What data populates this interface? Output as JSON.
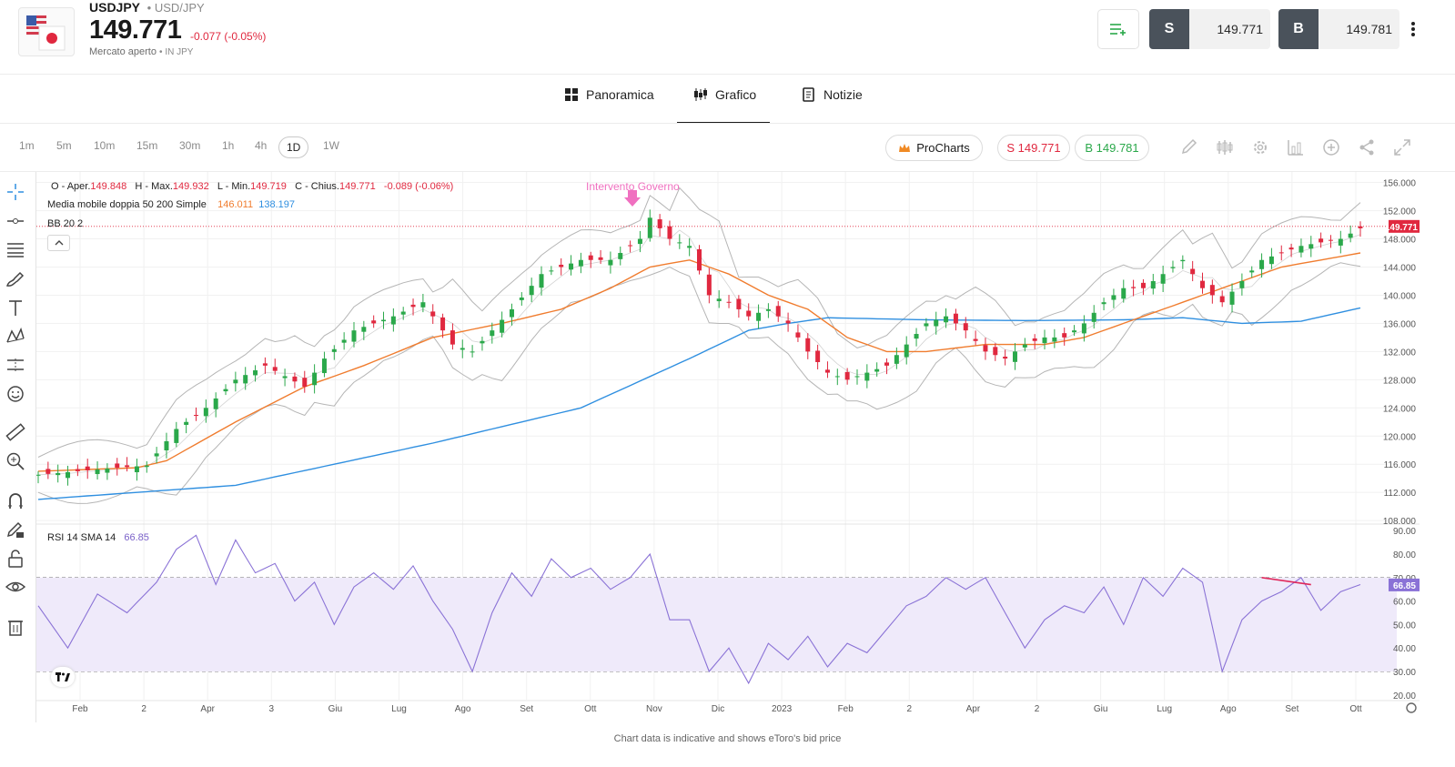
{
  "instrument": {
    "symbol": "USDJPY",
    "pair": "USD/JPY",
    "price": "149.771",
    "change": "-0.077 (-0.05%)",
    "market_status": "Mercato aperto",
    "currency": "IN JPY"
  },
  "trade": {
    "sell_label": "S",
    "sell_price": "149.771",
    "buy_label": "B",
    "buy_price": "149.781"
  },
  "tabs": [
    {
      "label": "Panoramica",
      "icon": "grid-icon"
    },
    {
      "label": "Grafico",
      "icon": "candlestick-icon",
      "active": true
    },
    {
      "label": "Notizie",
      "icon": "news-icon"
    }
  ],
  "timeframes": [
    "1m",
    "5m",
    "10m",
    "15m",
    "30m",
    "1h",
    "4h",
    "1D",
    "1W"
  ],
  "active_timeframe": "1D",
  "toolbar": {
    "procharts": "ProCharts",
    "sell_pill": "S 149.771",
    "buy_pill": "B 149.781"
  },
  "legend": {
    "ohlc": {
      "o_label": "O - Aper.",
      "o": "149.848",
      "h_label": "H - Max.",
      "h": "149.932",
      "l_label": "L - Min.",
      "l": "149.719",
      "c_label": "C - Chius.",
      "c": "149.771",
      "chg": "-0.089 (-0.06%)"
    },
    "ma_label": "Media mobile doppia 50 200 Simple",
    "ma50": "146.011",
    "ma200": "138.197",
    "bb_label": "BB 20 2",
    "rsi_label": "RSI 14 SMA 14",
    "rsi_value": "66.85"
  },
  "annotation": "Intervento Governo",
  "footer": "Chart data is indicative and shows eToro's bid price",
  "colors": {
    "up": "#2aa84a",
    "down": "#e0283f",
    "ma50": "#f07c2e",
    "ma200": "#2f8fe0",
    "bb": "#b5b5b5",
    "rsi": "#8a72d6",
    "annotation": "#f070c0"
  },
  "chart_data": {
    "type": "line",
    "price_axis": {
      "ticks": [
        "156.000",
        "152.000",
        "148.000",
        "144.000",
        "140.000",
        "136.000",
        "132.000",
        "128.000",
        "124.000",
        "120.000",
        "116.000",
        "112.000",
        "108.000"
      ],
      "range": [
        107.5,
        157.5
      ],
      "current_label": "149.771"
    },
    "rsi_axis": {
      "ticks": [
        "90.00",
        "80.00",
        "70.00",
        "60.00",
        "50.00",
        "40.00",
        "30.00",
        "20.00"
      ],
      "range": [
        18,
        92
      ],
      "current_label": "66.85",
      "bands": [
        30,
        50,
        70
      ]
    },
    "time_axis": [
      "Feb",
      "2",
      "Apr",
      "3",
      "Giu",
      "Lug",
      "Ago",
      "Set",
      "Ott",
      "Nov",
      "Dic",
      "2023",
      "Feb",
      "2",
      "Apr",
      "2",
      "Giu",
      "Lug",
      "Ago",
      "Set",
      "Ott"
    ],
    "price_path": [
      [
        0,
        114.5
      ],
      [
        4,
        115
      ],
      [
        8,
        115.5
      ],
      [
        11,
        115.8
      ],
      [
        14,
        121
      ],
      [
        17,
        124
      ],
      [
        20,
        128
      ],
      [
        23,
        130
      ],
      [
        27,
        127
      ],
      [
        29,
        131
      ],
      [
        32,
        135
      ],
      [
        36,
        137
      ],
      [
        39,
        139
      ],
      [
        42,
        133
      ],
      [
        44,
        132
      ],
      [
        48,
        138
      ],
      [
        51,
        143
      ],
      [
        55,
        145
      ],
      [
        58,
        145
      ],
      [
        61,
        148
      ],
      [
        62,
        151
      ],
      [
        64,
        148
      ],
      [
        66,
        147
      ],
      [
        68,
        140
      ],
      [
        70,
        139
      ],
      [
        72,
        137
      ],
      [
        74,
        138
      ],
      [
        76,
        136
      ],
      [
        78,
        132
      ],
      [
        80,
        129
      ],
      [
        82,
        128
      ],
      [
        84,
        129
      ],
      [
        86,
        130
      ],
      [
        88,
        133
      ],
      [
        90,
        136
      ],
      [
        92,
        137
      ],
      [
        94,
        135
      ],
      [
        96,
        132
      ],
      [
        98,
        131
      ],
      [
        100,
        133
      ],
      [
        102,
        134
      ],
      [
        104,
        134
      ],
      [
        106,
        136
      ],
      [
        108,
        139
      ],
      [
        110,
        141
      ],
      [
        112,
        141
      ],
      [
        114,
        143
      ],
      [
        116,
        145
      ],
      [
        118,
        141
      ],
      [
        120,
        139
      ],
      [
        122,
        142
      ],
      [
        124,
        145
      ],
      [
        126,
        146
      ],
      [
        128,
        147
      ],
      [
        130,
        147.5
      ],
      [
        132,
        148
      ],
      [
        134,
        149.5
      ]
    ],
    "ma50_path": [
      [
        0,
        115
      ],
      [
        10,
        115.5
      ],
      [
        13,
        116.5
      ],
      [
        20,
        122
      ],
      [
        27,
        127
      ],
      [
        33,
        130
      ],
      [
        40,
        134
      ],
      [
        47,
        136
      ],
      [
        53,
        138
      ],
      [
        58,
        141
      ],
      [
        62,
        144
      ],
      [
        66,
        145
      ],
      [
        70,
        143
      ],
      [
        74,
        140
      ],
      [
        78,
        138
      ],
      [
        82,
        134
      ],
      [
        86,
        132
      ],
      [
        90,
        132
      ],
      [
        96,
        133
      ],
      [
        102,
        133
      ],
      [
        106,
        134
      ],
      [
        110,
        136
      ],
      [
        114,
        138
      ],
      [
        118,
        140
      ],
      [
        122,
        142
      ],
      [
        126,
        144
      ],
      [
        130,
        145
      ],
      [
        134,
        146
      ]
    ],
    "ma200_path": [
      [
        0,
        111
      ],
      [
        20,
        113
      ],
      [
        40,
        119
      ],
      [
        55,
        124
      ],
      [
        66,
        131
      ],
      [
        72,
        135
      ],
      [
        76,
        136
      ],
      [
        80,
        136.8
      ],
      [
        90,
        136.5
      ],
      [
        100,
        136.4
      ],
      [
        110,
        136.5
      ],
      [
        116,
        136.8
      ],
      [
        122,
        136
      ],
      [
        128,
        136.3
      ],
      [
        134,
        138.2
      ]
    ],
    "rsi_path": [
      [
        0,
        58
      ],
      [
        3,
        40
      ],
      [
        6,
        63
      ],
      [
        9,
        55
      ],
      [
        12,
        68
      ],
      [
        14,
        82
      ],
      [
        16,
        88
      ],
      [
        18,
        67
      ],
      [
        20,
        86
      ],
      [
        22,
        72
      ],
      [
        24,
        76
      ],
      [
        26,
        60
      ],
      [
        28,
        68
      ],
      [
        30,
        50
      ],
      [
        32,
        66
      ],
      [
        34,
        72
      ],
      [
        36,
        65
      ],
      [
        38,
        75
      ],
      [
        40,
        60
      ],
      [
        42,
        48
      ],
      [
        44,
        30
      ],
      [
        46,
        55
      ],
      [
        48,
        72
      ],
      [
        50,
        62
      ],
      [
        52,
        78
      ],
      [
        54,
        70
      ],
      [
        56,
        74
      ],
      [
        58,
        65
      ],
      [
        60,
        70
      ],
      [
        62,
        80
      ],
      [
        64,
        52
      ],
      [
        66,
        52
      ],
      [
        68,
        30
      ],
      [
        70,
        40
      ],
      [
        72,
        25
      ],
      [
        74,
        42
      ],
      [
        76,
        35
      ],
      [
        78,
        45
      ],
      [
        80,
        32
      ],
      [
        82,
        42
      ],
      [
        84,
        38
      ],
      [
        86,
        48
      ],
      [
        88,
        58
      ],
      [
        90,
        62
      ],
      [
        92,
        70
      ],
      [
        94,
        65
      ],
      [
        96,
        70
      ],
      [
        98,
        55
      ],
      [
        100,
        40
      ],
      [
        102,
        52
      ],
      [
        104,
        58
      ],
      [
        106,
        55
      ],
      [
        108,
        66
      ],
      [
        110,
        50
      ],
      [
        112,
        70
      ],
      [
        114,
        62
      ],
      [
        116,
        74
      ],
      [
        118,
        68
      ],
      [
        120,
        30
      ],
      [
        122,
        52
      ],
      [
        124,
        60
      ],
      [
        126,
        64
      ],
      [
        128,
        70
      ],
      [
        130,
        56
      ],
      [
        132,
        64
      ],
      [
        134,
        67
      ]
    ],
    "rsi_trendline": [
      [
        124,
        70
      ],
      [
        129,
        67
      ]
    ]
  }
}
